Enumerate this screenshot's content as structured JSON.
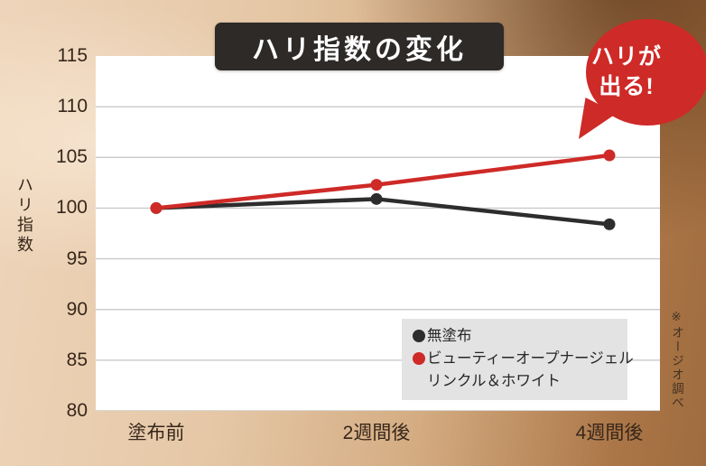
{
  "title_box": {
    "label": "ハリ指数の変化"
  },
  "badge": {
    "line1": "ハリが",
    "line2": "出る!"
  },
  "chart_data": {
    "type": "line",
    "title": "ハリ指数の変化",
    "categories": [
      "塗布前",
      "2週間後",
      "4週間後"
    ],
    "series": [
      {
        "name": "無塗布",
        "color": "#2d2d2d",
        "values": [
          100,
          100.9,
          98.4
        ],
        "legend_lines": [
          "無塗布"
        ]
      },
      {
        "name": "ビューティーオープナージェル リンクル＆ホワイト",
        "color": "#ce2a27",
        "values": [
          100,
          102.3,
          105.2
        ],
        "legend_lines": [
          "ビューティーオープナージェル",
          "リンクル＆ホワイト"
        ]
      }
    ],
    "xlabel": "",
    "ylabel": "ハリ指数",
    "ylim": [
      80,
      115
    ],
    "yticks": [
      80,
      85,
      90,
      95,
      100,
      105,
      110,
      115
    ],
    "grid": true,
    "grid_color": "#c9c9c9",
    "legend_position": "inside-bottom-right",
    "legend_bg": "#e3e3e3",
    "annotation": "ハリが出る!",
    "footnote": "※オージオ調べ"
  },
  "colors": {
    "background_light": "#eed5ba",
    "background_dark": "#9e6c3f",
    "title_bg": "#2d2a28",
    "accent_red": "#ce2a27",
    "line_black": "#2d2d2d",
    "plot_bg": "#ffffff",
    "text_dark": "#37271a"
  }
}
